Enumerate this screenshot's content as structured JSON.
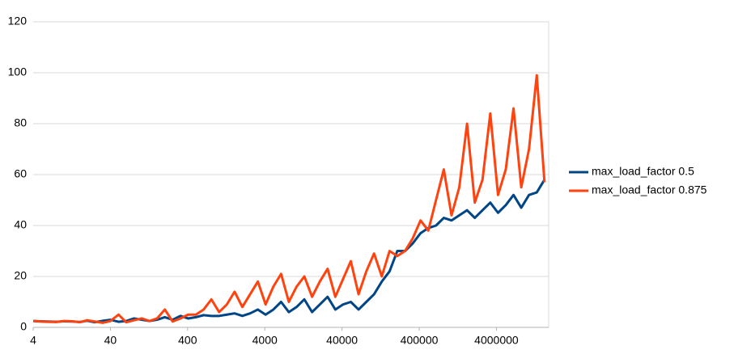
{
  "chart_data": {
    "type": "line",
    "log_x": true,
    "grid": true,
    "legend": "right",
    "x": [
      4,
      5,
      6,
      8,
      10,
      13,
      16,
      20,
      25,
      32,
      40,
      51,
      64,
      81,
      102,
      128,
      161,
      203,
      256,
      323,
      406,
      512,
      645,
      813,
      1024,
      1290,
      1625,
      2048,
      2580,
      3251,
      4096,
      5161,
      6502,
      8192,
      10321,
      13004,
      16384,
      20643,
      26008,
      32768,
      41285,
      52016,
      65536,
      82570,
      104032,
      131072,
      165140,
      208064,
      262144,
      330281,
      416128,
      524288,
      660561,
      832255,
      1048576,
      1321123,
      1664511,
      2097152,
      2642246,
      3329021,
      4194304,
      5284492,
      6658043,
      8388608,
      10568984,
      13316085,
      16777216
    ],
    "series": [
      {
        "name": "max_load_factor 0.5",
        "color": "#004586",
        "values": [
          2.5,
          2.4,
          2.3,
          2.2,
          2.4,
          2.3,
          2.1,
          2.6,
          2.0,
          2.6,
          3.0,
          2.2,
          2.5,
          3.5,
          3.0,
          2.5,
          3.0,
          4.0,
          3.0,
          4.5,
          3.5,
          4.0,
          4.8,
          4.5,
          4.5,
          5.0,
          5.5,
          4.5,
          5.5,
          7,
          5,
          7,
          10,
          6,
          8,
          11,
          6,
          9,
          12,
          7,
          9,
          10,
          7,
          10,
          13,
          18,
          22,
          30,
          30,
          33,
          37,
          39,
          40,
          43,
          42,
          44,
          46,
          43,
          46,
          49,
          45,
          48,
          52,
          47,
          52,
          53,
          58
        ]
      },
      {
        "name": "max_load_factor 0.875",
        "color": "#ff420e",
        "values": [
          2.5,
          2.3,
          2.2,
          2.1,
          2.5,
          2.4,
          2.0,
          2.8,
          2.3,
          1.8,
          2.5,
          5.0,
          2.0,
          2.8,
          3.5,
          2.5,
          3.5,
          7.0,
          2.3,
          3.5,
          5.0,
          5,
          7,
          11,
          6,
          9,
          14,
          8,
          13,
          18,
          9,
          16,
          21,
          10,
          16,
          20,
          12,
          18,
          23,
          12,
          19,
          26,
          13,
          22,
          29,
          20,
          30,
          28,
          30,
          35,
          42,
          38,
          50,
          62,
          44,
          55,
          80,
          49,
          58,
          84,
          52,
          62,
          86,
          55,
          70,
          99,
          57
        ]
      }
    ],
    "xlim": [
      4,
      19000000
    ],
    "xticks": [
      4,
      40,
      400,
      4000,
      40000,
      400000,
      4000000
    ],
    "ylim": [
      0,
      120
    ],
    "yticks": [
      0,
      20,
      40,
      60,
      80,
      100,
      120
    ]
  }
}
